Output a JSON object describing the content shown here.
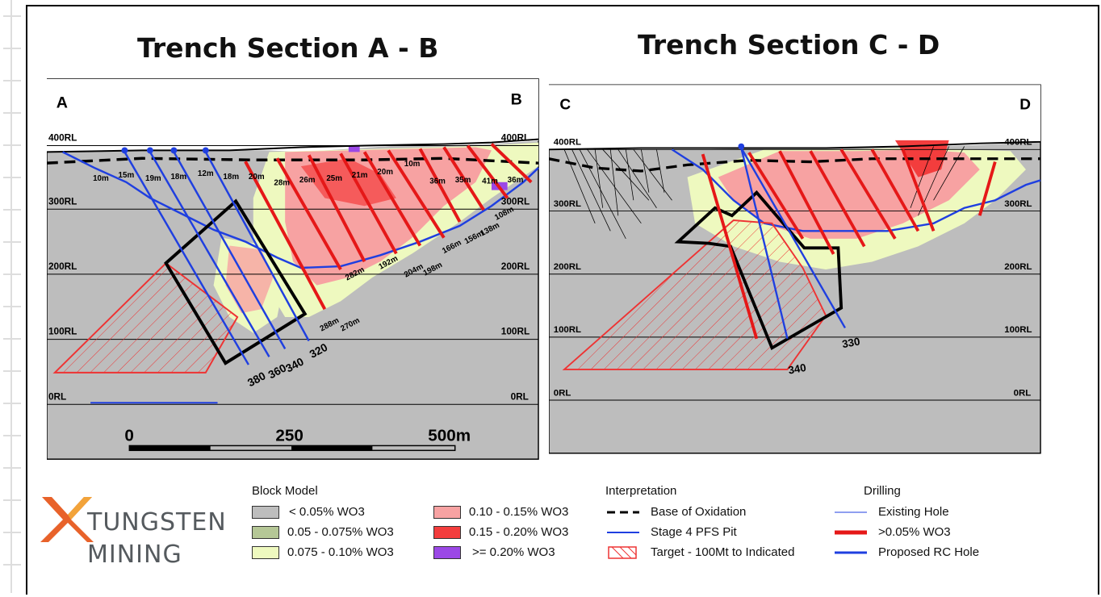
{
  "titles": {
    "left": "Trench Section A - B",
    "right": "Trench Section C - D"
  },
  "panelA": {
    "corner_left": "A",
    "corner_right": "B",
    "rl_labels": [
      "400RL",
      "300RL",
      "200RL",
      "100RL",
      "0RL"
    ],
    "scale": {
      "l0": "0",
      "l1": "250",
      "l2": "500m"
    },
    "hole_depths": [
      "10m",
      "15m",
      "19m",
      "18m",
      "12m",
      "18m",
      "20m",
      "28m",
      "26m",
      "25m",
      "21m",
      "20m",
      "10m",
      "36m",
      "35m",
      "41m",
      "36m",
      "108m",
      "138m",
      "156m",
      "166m",
      "198m",
      "204m",
      "192m",
      "282m",
      "270m",
      "288m"
    ],
    "hole_ids": [
      "380",
      "360",
      "340",
      "320"
    ]
  },
  "panelC": {
    "corner_left": "C",
    "corner_right": "D",
    "rl_labels": [
      "400RL",
      "300RL",
      "200RL",
      "100RL",
      "0RL"
    ],
    "hole_ids": [
      "330",
      "340"
    ]
  },
  "legend": {
    "block_model": {
      "title": "Block Model",
      "items": [
        {
          "label": "< 0.05% WO3",
          "color": "#bdbdbd"
        },
        {
          "label": "0.05 - 0.075% WO3",
          "color": "#b5c796"
        },
        {
          "label": "0.075 - 0.10% WO3",
          "color": "#eef9bf"
        },
        {
          "label": "0.10 - 0.15% WO3",
          "color": "#f7a2a2"
        },
        {
          "label": "0.15 - 0.20% WO3",
          "color": "#f33d3d"
        },
        {
          "label": ">= 0.20% WO3",
          "color": "#9b48e6"
        }
      ]
    },
    "interpretation": {
      "title": "Interpretation",
      "items": [
        "Base of Oxidation",
        "Stage 4 PFS Pit",
        "Target - 100Mt to Indicated"
      ]
    },
    "drilling": {
      "title": "Drilling",
      "items": [
        "Existing Hole",
        ">0.05% WO3",
        "Proposed RC Hole"
      ]
    }
  },
  "logo": {
    "line1": "TUNGSTEN",
    "line2": "MINING",
    "colors": [
      "#e8622a",
      "#f2a33a"
    ]
  }
}
